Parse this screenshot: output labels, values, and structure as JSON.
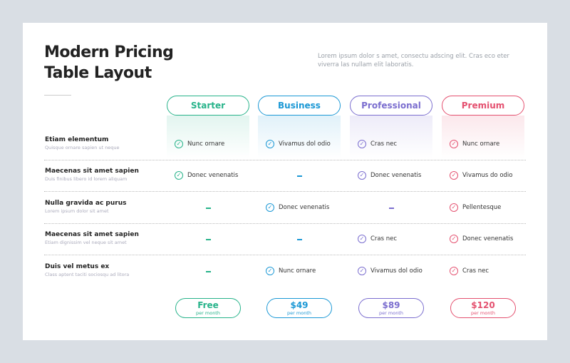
{
  "title_line1": "Modern Pricing",
  "title_line2": "Table Layout",
  "description": "Lorem ipsum dolor s amet, consectu adscing elit. Cras eco eter viverra las nullam elit laboratis.",
  "colors": {
    "starter": "#27b38a",
    "business": "#1b98d5",
    "professional": "#7b6ecf",
    "premium": "#e4506f"
  },
  "plans": [
    {
      "name": "Starter",
      "price": "Free",
      "period": "per month"
    },
    {
      "name": "Business",
      "price": "$49",
      "period": "per month"
    },
    {
      "name": "Professional",
      "price": "$89",
      "period": "per month"
    },
    {
      "name": "Premium",
      "price": "$120",
      "period": "per month"
    }
  ],
  "rows": [
    {
      "title": "Etiam elementum",
      "subtitle": "Quisque ornare sapien ut neque",
      "cells": [
        "Nunc ornare",
        "Vivamus dol odio",
        "Cras nec",
        "Nunc ornare"
      ]
    },
    {
      "title": "Maecenas sit amet sapien",
      "subtitle": "Duis finibus libero id lorem aliquam",
      "cells": [
        "Donec venenatis",
        null,
        "Donec venenatis",
        "Vivamus do odio"
      ]
    },
    {
      "title": "Nulla gravida ac purus",
      "subtitle": "Lorem ipsum dolor sit amet",
      "cells": [
        null,
        "Donec venenatis",
        null,
        "Pellentesque"
      ]
    },
    {
      "title": "Maecenas sit amet sapien",
      "subtitle": "Etiam dignissim vel neque sit amet",
      "cells": [
        null,
        null,
        "Cras nec",
        "Donec venenatis"
      ]
    },
    {
      "title": "Duis vel metus ex",
      "subtitle": "Class aptent taciti sociosqu ad litora",
      "cells": [
        null,
        "Nunc ornare",
        "Vivamus dol odio",
        "Cras nec"
      ]
    }
  ]
}
